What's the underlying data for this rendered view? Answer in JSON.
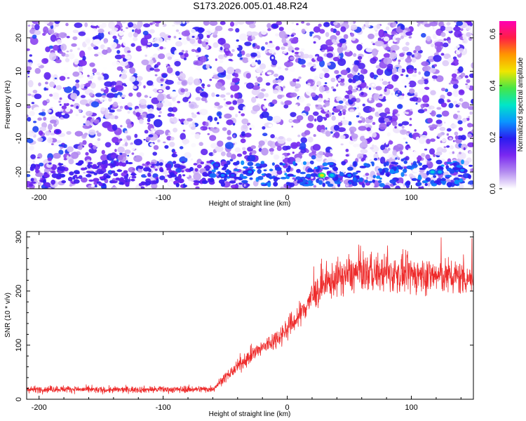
{
  "title": "S173.2026.005.01.48.R24",
  "colors": {
    "snr_line": "#ee2b2b",
    "frame": "#000000",
    "colormap": [
      "#ffffff",
      "#b48cf0",
      "#7a28f0",
      "#2a1cf0",
      "#0a96ff",
      "#00e6c8",
      "#46e646",
      "#f0e600",
      "#ff9600",
      "#ff1e46",
      "#ff00b4"
    ]
  },
  "chart_data": [
    {
      "type": "heatmap",
      "title": "S173.2026.005.01.48.R24",
      "xlabel": "Height of straight line (km)",
      "ylabel": "Frequency (Hz)",
      "xlim": [
        -210,
        150
      ],
      "ylim": [
        -25,
        25
      ],
      "x_ticks": [
        -200,
        -100,
        0,
        100
      ],
      "y_ticks": [
        -20,
        -10,
        0,
        10,
        20
      ],
      "colorbar": {
        "label": "Normalized spectral amplitude",
        "range": [
          0,
          0.65
        ],
        "ticks": [
          0.0,
          0.2,
          0.4,
          0.6
        ]
      },
      "features": [
        {
          "x": -57,
          "y": -18,
          "amplitude": 0.22
        },
        {
          "x": -52,
          "y": -21,
          "amplitude": 0.25
        },
        {
          "x": -44,
          "y": -21,
          "amplitude": 0.22
        },
        {
          "x": -30,
          "y": -20,
          "amplitude": 0.25
        },
        {
          "x": 28,
          "y": -21,
          "amplitude": 0.45
        },
        {
          "x": 36,
          "y": -21,
          "amplitude": 0.3
        },
        {
          "x": 50,
          "y": -21,
          "amplitude": 0.25
        },
        {
          "x": 117,
          "y": -20,
          "amplitude": 0.3
        },
        {
          "x": 123,
          "y": -20,
          "amplitude": 0.28
        },
        {
          "x": 141,
          "y": -19.5,
          "amplitude": 0.25
        },
        {
          "x": -10,
          "y": 23.5,
          "amplitude": 0.2
        },
        {
          "x": -185,
          "y": -8,
          "amplitude": 0.18
        }
      ]
    },
    {
      "type": "line",
      "xlabel": "Height of straight line (km)",
      "ylabel": "SNR (10 * v/v)",
      "xlim": [
        -210,
        150
      ],
      "ylim": [
        0,
        310
      ],
      "x_ticks": [
        -200,
        -100,
        0,
        100
      ],
      "y_ticks": [
        0,
        100,
        200,
        300
      ],
      "series": [
        {
          "x": [
            -210,
            -180,
            -150,
            -120,
            -90,
            -60,
            -55,
            -50,
            -40,
            -30,
            -20,
            -10,
            0,
            10,
            20,
            30,
            40,
            60,
            80,
            100,
            120,
            150
          ],
          "values": [
            18,
            19,
            17,
            18,
            18,
            19,
            30,
            40,
            60,
            80,
            95,
            110,
            130,
            155,
            190,
            210,
            225,
            235,
            232,
            230,
            228,
            225
          ]
        }
      ]
    }
  ]
}
